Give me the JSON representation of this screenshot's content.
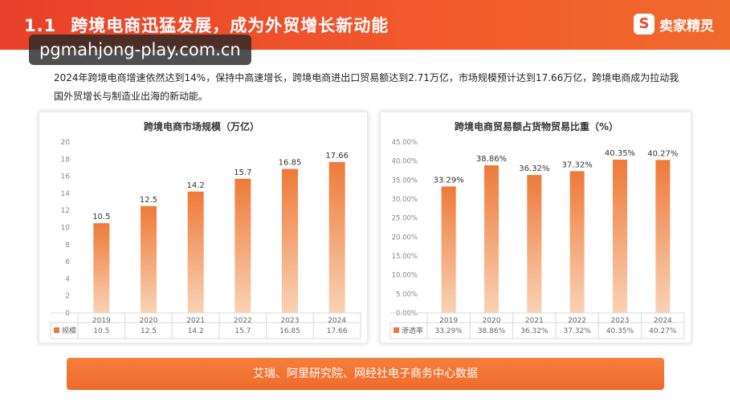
{
  "header": {
    "section_number": "1.1",
    "title": "跨境电商迅猛发展，成为外贸增长新动能",
    "brand_name": "卖家精灵",
    "brand_icon": "S-logo-icon"
  },
  "watermark": {
    "text": "pgmahjong-play.com.cn"
  },
  "intro_text": "2024年跨境电商增速依然达到14%，保持中高速增长，跨境电商进出口贸易额达到2.71万亿，市场规模预计达到17.66万亿，跨境电商成为拉动我国外贸增长与制造业出海的新动能。",
  "chart_data": [
    {
      "type": "bar",
      "title": "跨境电商市场规模（万亿）",
      "categories": [
        "2019",
        "2020",
        "2021",
        "2022",
        "2023",
        "2024"
      ],
      "series": [
        {
          "name": "规模",
          "values": [
            10.5,
            12.5,
            14.2,
            15.7,
            16.85,
            17.66
          ],
          "labels": [
            "10.5",
            "12.5",
            "14.2",
            "15.7",
            "16.85",
            "17.66"
          ]
        }
      ],
      "y_ticks": [
        "0",
        "2",
        "4",
        "6",
        "8",
        "10",
        "12",
        "14",
        "16",
        "18",
        "20"
      ],
      "ylim": [
        0,
        20
      ],
      "grid": false,
      "data_table": true,
      "bar_colors": [
        "#f9d2b6",
        "#ee7a3a"
      ]
    },
    {
      "type": "bar",
      "title": "跨境电商贸易额占货物贸易比重（%）",
      "categories": [
        "2019",
        "2020",
        "2021",
        "2022",
        "2023",
        "2024"
      ],
      "series": [
        {
          "name": "渗透率",
          "values": [
            33.29,
            38.86,
            36.32,
            37.32,
            40.35,
            40.27
          ],
          "labels": [
            "33.29%",
            "38.86%",
            "36.32%",
            "37.32%",
            "40.35%",
            "40.27%"
          ]
        }
      ],
      "y_ticks": [
        "0.00%",
        "5.00%",
        "10.00%",
        "15.00%",
        "20.00%",
        "25.00%",
        "30.00%",
        "35.00%",
        "40.00%",
        "45.00%"
      ],
      "ylim": [
        0,
        45
      ],
      "grid": false,
      "data_table": true,
      "bar_colors": [
        "#f9d2b6",
        "#ee7a3a"
      ]
    }
  ],
  "source_note": "艾瑞、阿里研究院、网经社电子商务中心数据"
}
